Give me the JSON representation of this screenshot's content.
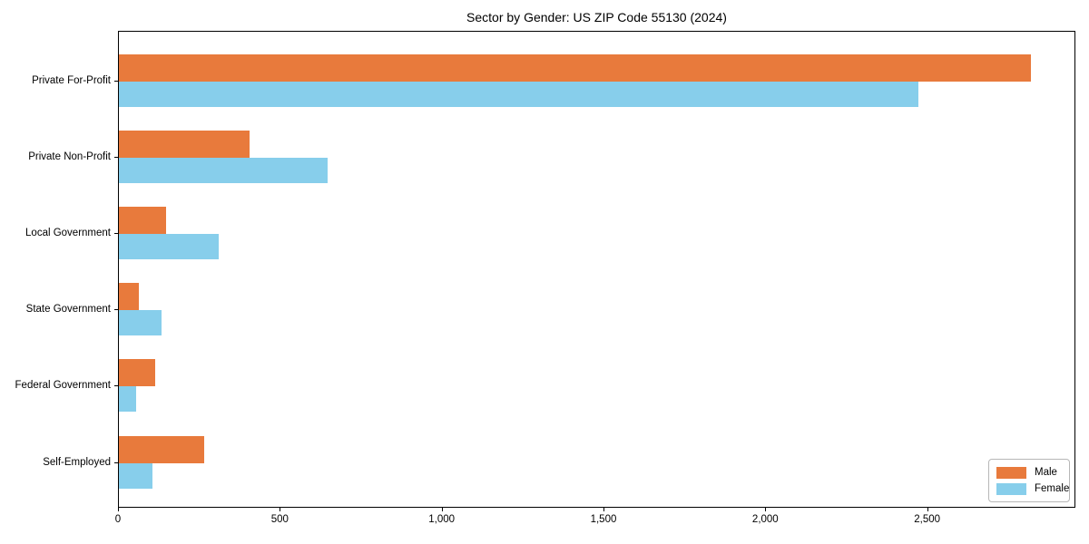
{
  "title": "Sector by Gender: US ZIP Code 55130 (2024)",
  "chart_data": {
    "type": "bar",
    "orientation": "horizontal",
    "title": "Sector by Gender: US ZIP Code 55130 (2024)",
    "categories": [
      "Private For-Profit",
      "Private Non-Profit",
      "Local Government",
      "State Government",
      "Federal Government",
      "Self-Employed"
    ],
    "series": [
      {
        "name": "Male",
        "color": "#e87a3c",
        "values": [
          2817,
          404,
          146,
          61,
          112,
          264
        ]
      },
      {
        "name": "Female",
        "color": "#87ceeb",
        "values": [
          2470,
          645,
          309,
          133,
          54,
          104
        ]
      }
    ],
    "xlabel": "",
    "ylabel": "",
    "xlim": [
      0,
      2958
    ],
    "xticks": [
      0,
      500,
      1000,
      1500,
      2000,
      2500
    ],
    "xtick_labels": [
      "0",
      "500",
      "1,000",
      "1,500",
      "2,000",
      "2,500"
    ],
    "grid": false,
    "legend_position": "lower right",
    "colors": {
      "axis": "#000000",
      "background": "#ffffff",
      "legend_border": "#b7b7b7"
    }
  },
  "legend": {
    "items": [
      {
        "label": "Male"
      },
      {
        "label": "Female"
      }
    ]
  }
}
